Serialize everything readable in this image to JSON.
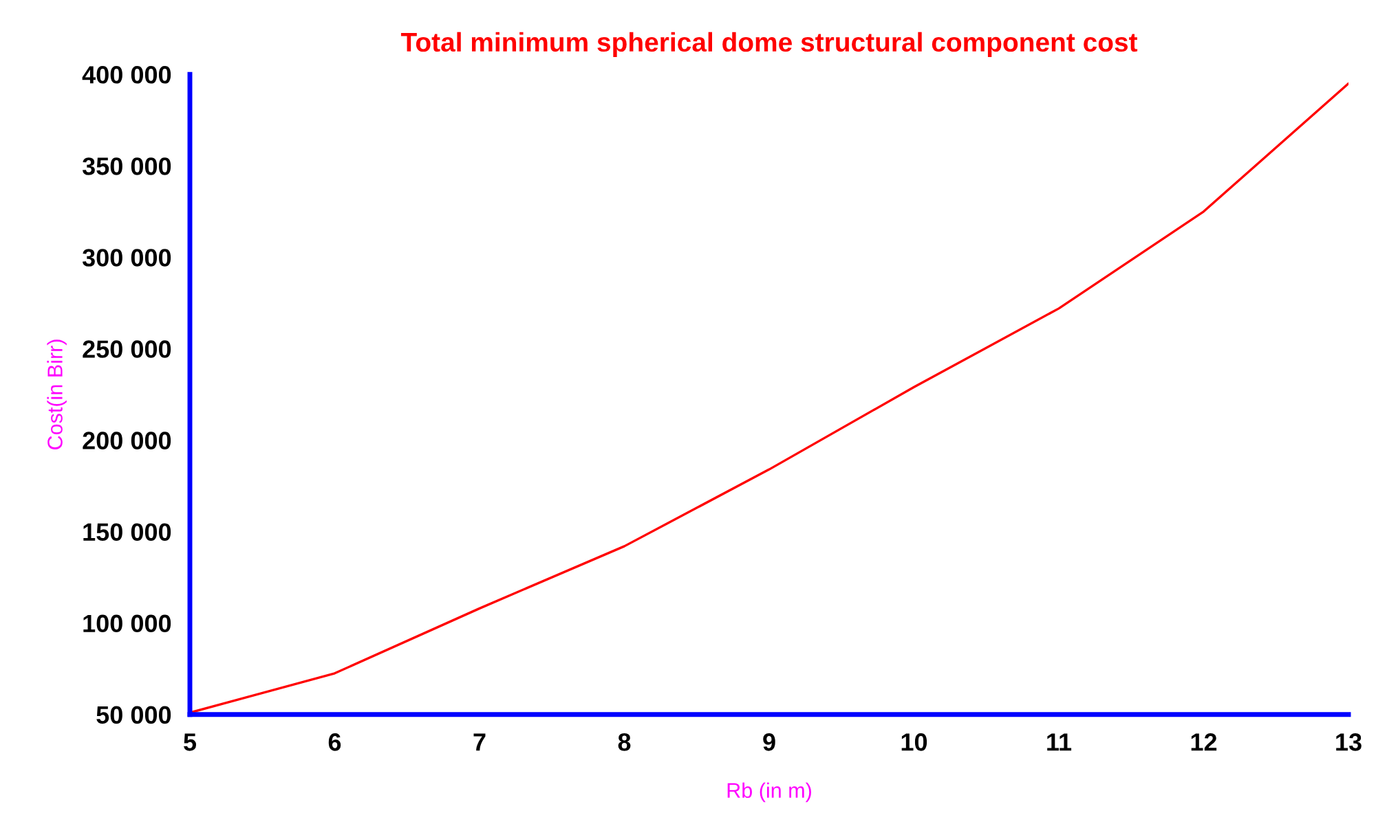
{
  "chart_data": {
    "type": "line",
    "title": "Total minimum spherical dome structural component cost",
    "xlabel": "Rb (in m)",
    "ylabel": "Cost(in Birr)",
    "x": [
      5,
      6,
      7,
      8,
      9,
      10,
      11,
      12,
      13
    ],
    "series": [
      {
        "color": "#ff0000",
        "values": [
          51000,
          72500,
          108000,
          142000,
          184000,
          229000,
          272000,
          325000,
          395000
        ]
      }
    ],
    "xlim": [
      5,
      13
    ],
    "xticks": [
      5,
      6,
      7,
      8,
      9,
      10,
      11,
      12,
      13
    ],
    "ylim": [
      50000,
      400000
    ],
    "yticks": [
      {
        "value": 50000,
        "label": "50 000"
      },
      {
        "value": 100000,
        "label": "100 000"
      },
      {
        "value": 150000,
        "label": "150 000"
      },
      {
        "value": 200000,
        "label": "200 000"
      },
      {
        "value": 250000,
        "label": "250 000"
      },
      {
        "value": 300000,
        "label": "300 000"
      },
      {
        "value": 350000,
        "label": "350 000"
      },
      {
        "value": 400000,
        "label": "400 000"
      }
    ],
    "grid": false,
    "legend": false,
    "marker": "none",
    "line_style": "solid"
  }
}
